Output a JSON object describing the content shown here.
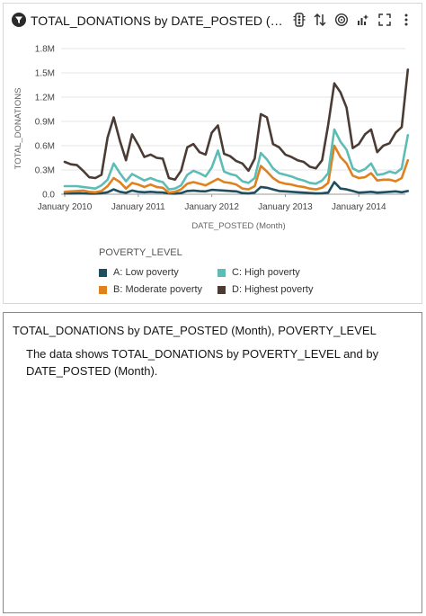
{
  "chart_panel": {
    "title": "TOTAL_DONATIONS by DATE_POSTED (Month), POVERTY_LEVEL",
    "tools": [
      "traffic-light-icon",
      "sort-icon",
      "target-icon",
      "analytics-icon",
      "expand-icon",
      "more-options-icon"
    ]
  },
  "chart_data": {
    "type": "line",
    "title": "TOTAL_DONATIONS by DATE_POSTED (Month)",
    "xlabel": "DATE_POSTED (Month)",
    "ylabel": "TOTAL_DONATIONS",
    "y_ticks": [
      "0.0",
      "0.3M",
      "0.6M",
      "0.9M",
      "1.2M",
      "1.5M",
      "1.8M"
    ],
    "ylim": [
      0,
      1800000
    ],
    "x_ticks": [
      "January 2010",
      "January 2011",
      "January 2012",
      "January 2013",
      "January 2014"
    ],
    "x_start": "January 2010",
    "x_end": "August 2014",
    "grid": true,
    "legend": {
      "title": "POVERTY_LEVEL",
      "placement": "bottom"
    },
    "series": [
      {
        "name": "A: Low poverty",
        "color": "#1f4e5f",
        "values": [
          10000,
          10000,
          12000,
          11000,
          8000,
          8000,
          12000,
          25000,
          60000,
          30000,
          18000,
          45000,
          30000,
          25000,
          30000,
          25000,
          22000,
          10000,
          8000,
          15000,
          40000,
          45000,
          38000,
          35000,
          55000,
          50000,
          45000,
          40000,
          35000,
          15000,
          10000,
          20000,
          90000,
          80000,
          60000,
          40000,
          35000,
          30000,
          25000,
          20000,
          15000,
          10000,
          12000,
          20000,
          150000,
          70000,
          60000,
          40000,
          20000,
          25000,
          30000,
          20000,
          25000,
          30000,
          35000,
          25000,
          40000
        ]
      },
      {
        "name": "B: Moderate poverty",
        "color": "#e0811f",
        "values": [
          30000,
          35000,
          40000,
          45000,
          30000,
          25000,
          40000,
          100000,
          200000,
          150000,
          70000,
          140000,
          120000,
          90000,
          120000,
          90000,
          80000,
          20000,
          30000,
          60000,
          130000,
          150000,
          130000,
          110000,
          150000,
          190000,
          150000,
          140000,
          120000,
          70000,
          60000,
          100000,
          350000,
          280000,
          200000,
          150000,
          130000,
          120000,
          100000,
          90000,
          70000,
          60000,
          80000,
          140000,
          600000,
          460000,
          380000,
          230000,
          200000,
          210000,
          260000,
          170000,
          180000,
          180000,
          160000,
          200000,
          420000
        ]
      },
      {
        "name": "C: High poverty",
        "color": "#5cbdb6",
        "values": [
          100000,
          100000,
          100000,
          90000,
          80000,
          70000,
          110000,
          180000,
          380000,
          260000,
          160000,
          250000,
          210000,
          170000,
          200000,
          170000,
          150000,
          60000,
          70000,
          110000,
          240000,
          290000,
          260000,
          220000,
          330000,
          540000,
          280000,
          250000,
          230000,
          160000,
          140000,
          200000,
          510000,
          430000,
          320000,
          260000,
          240000,
          220000,
          190000,
          170000,
          140000,
          130000,
          170000,
          260000,
          800000,
          650000,
          550000,
          320000,
          280000,
          310000,
          380000,
          240000,
          250000,
          280000,
          260000,
          320000,
          730000
        ]
      },
      {
        "name": "D: Highest poverty",
        "color": "#4a3c35",
        "values": [
          400000,
          370000,
          360000,
          290000,
          210000,
          200000,
          240000,
          700000,
          950000,
          660000,
          420000,
          740000,
          610000,
          460000,
          490000,
          450000,
          440000,
          200000,
          180000,
          290000,
          580000,
          620000,
          520000,
          490000,
          760000,
          850000,
          500000,
          470000,
          410000,
          380000,
          290000,
          440000,
          990000,
          950000,
          620000,
          580000,
          490000,
          460000,
          420000,
          400000,
          340000,
          320000,
          420000,
          860000,
          1370000,
          1260000,
          1070000,
          570000,
          620000,
          740000,
          800000,
          520000,
          600000,
          630000,
          760000,
          830000,
          1540000
        ]
      }
    ]
  },
  "summary_panel": {
    "title": "TOTAL_DONATIONS by DATE_POSTED (Month), POVERTY_LEVEL",
    "text": "The data shows TOTAL_DONATIONS by POVERTY_LEVEL and by DATE_POSTED (Month)."
  }
}
